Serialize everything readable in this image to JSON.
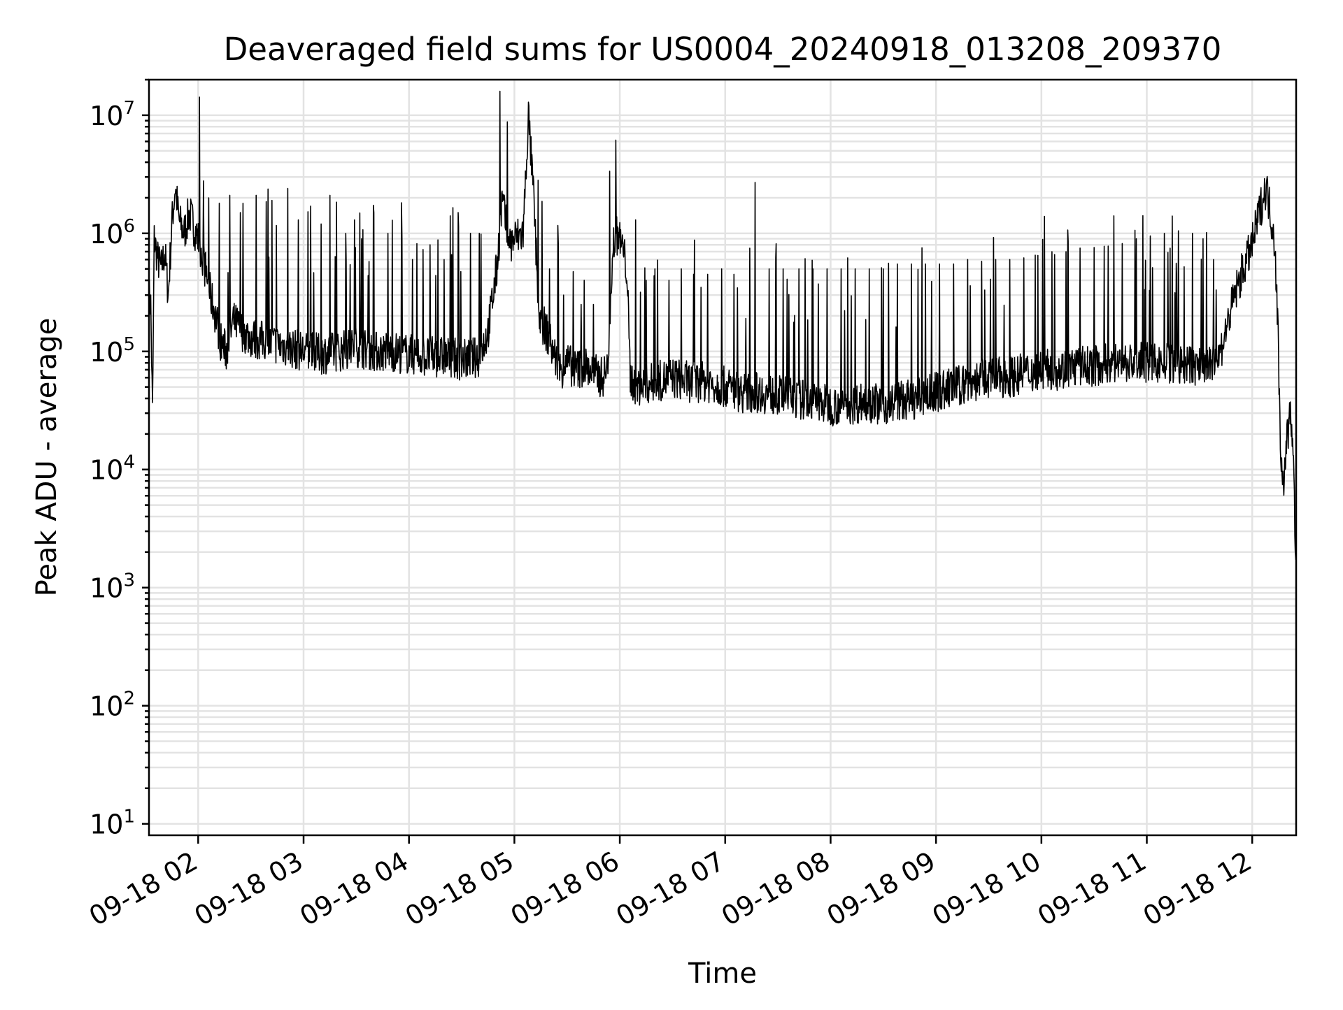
{
  "chart_data": {
    "type": "line",
    "title": "Deaveraged field sums for US0004_20240918_013208_209370",
    "xlabel": "Time",
    "ylabel": "Peak ADU - average",
    "yscale": "log",
    "ylim": [
      8,
      20000000
    ],
    "xlim": [
      "2024-09-18 01:32",
      "2024-09-18 12:25"
    ],
    "grid": true,
    "line_color": "#000000",
    "grid_color": "#e3e3e3",
    "x_ticks": [
      {
        "value": "2024-09-18 02:00",
        "label": "09-18 02"
      },
      {
        "value": "2024-09-18 03:00",
        "label": "09-18 03"
      },
      {
        "value": "2024-09-18 04:00",
        "label": "09-18 04"
      },
      {
        "value": "2024-09-18 05:00",
        "label": "09-18 05"
      },
      {
        "value": "2024-09-18 06:00",
        "label": "09-18 06"
      },
      {
        "value": "2024-09-18 07:00",
        "label": "09-18 07"
      },
      {
        "value": "2024-09-18 08:00",
        "label": "09-18 08"
      },
      {
        "value": "2024-09-18 09:00",
        "label": "09-18 09"
      },
      {
        "value": "2024-09-18 10:00",
        "label": "09-18 10"
      },
      {
        "value": "2024-09-18 11:00",
        "label": "09-18 11"
      },
      {
        "value": "2024-09-18 12:00",
        "label": "09-18 12"
      }
    ],
    "y_ticks": [
      {
        "value": 10,
        "base": "10",
        "exp": "1"
      },
      {
        "value": 100,
        "base": "10",
        "exp": "2"
      },
      {
        "value": 1000,
        "base": "10",
        "exp": "3"
      },
      {
        "value": 10000,
        "base": "10",
        "exp": "4"
      },
      {
        "value": 100000,
        "base": "10",
        "exp": "5"
      },
      {
        "value": 1000000,
        "base": "10",
        "exp": "6"
      },
      {
        "value": 10000000,
        "base": "10",
        "exp": "7"
      }
    ],
    "series": [
      {
        "points": [
          [
            "2024-09-18 01:32",
            300000
          ],
          [
            "2024-09-18 01:33",
            250000
          ],
          [
            "2024-09-18 01:34",
            30000
          ],
          [
            "2024-09-18 01:35",
            900000
          ],
          [
            "2024-09-18 01:37",
            600000
          ],
          [
            "2024-09-18 01:39",
            500000
          ],
          [
            "2024-09-18 01:41",
            700000
          ],
          [
            "2024-09-18 01:43",
            300000
          ],
          [
            "2024-09-18 01:45",
            1200000
          ],
          [
            "2024-09-18 01:47",
            2500000
          ],
          [
            "2024-09-18 01:49",
            1300000
          ],
          [
            "2024-09-18 01:52",
            1000000
          ],
          [
            "2024-09-18 01:55",
            1500000
          ],
          [
            "2024-09-18 01:58",
            1100000
          ],
          [
            "2024-09-18 02:01",
            800000
          ],
          [
            "2024-09-18 02:04",
            500000
          ],
          [
            "2024-09-18 02:07",
            300000
          ],
          [
            "2024-09-18 02:10",
            200000
          ],
          [
            "2024-09-18 02:13",
            120000
          ],
          [
            "2024-09-18 02:16",
            100000
          ],
          [
            "2024-09-18 02:20",
            180000
          ],
          [
            "2024-09-18 02:25",
            150000
          ],
          [
            "2024-09-18 02:30",
            130000
          ],
          [
            "2024-09-18 02:40",
            120000
          ],
          [
            "2024-09-18 02:50",
            110000
          ],
          [
            "2024-09-18 03:00",
            100000
          ],
          [
            "2024-09-18 03:10",
            95000
          ],
          [
            "2024-09-18 03:20",
            100000
          ],
          [
            "2024-09-18 03:30",
            110000
          ],
          [
            "2024-09-18 03:40",
            100000
          ],
          [
            "2024-09-18 03:50",
            100000
          ],
          [
            "2024-09-18 04:00",
            95000
          ],
          [
            "2024-09-18 04:10",
            90000
          ],
          [
            "2024-09-18 04:20",
            90000
          ],
          [
            "2024-09-18 04:30",
            85000
          ],
          [
            "2024-09-18 04:40",
            90000
          ],
          [
            "2024-09-18 04:45",
            150000
          ],
          [
            "2024-09-18 04:50",
            500000
          ],
          [
            "2024-09-18 04:53",
            1900000
          ],
          [
            "2024-09-18 04:56",
            1000000
          ],
          [
            "2024-09-18 04:58",
            800000
          ],
          [
            "2024-09-18 05:00",
            900000
          ],
          [
            "2024-09-18 05:05",
            1000000
          ],
          [
            "2024-09-18 05:08",
            10000000
          ],
          [
            "2024-09-18 05:11",
            2000000
          ],
          [
            "2024-09-18 05:14",
            200000
          ],
          [
            "2024-09-18 05:18",
            150000
          ],
          [
            "2024-09-18 05:22",
            100000
          ],
          [
            "2024-09-18 05:26",
            70000
          ],
          [
            "2024-09-18 05:30",
            80000
          ],
          [
            "2024-09-18 05:35",
            70000
          ],
          [
            "2024-09-18 05:40",
            75000
          ],
          [
            "2024-09-18 05:45",
            65000
          ],
          [
            "2024-09-18 05:50",
            60000
          ],
          [
            "2024-09-18 05:53",
            70000
          ],
          [
            "2024-09-18 05:56",
            800000
          ],
          [
            "2024-09-18 05:59",
            1000000
          ],
          [
            "2024-09-18 06:02",
            700000
          ],
          [
            "2024-09-18 06:04",
            500000
          ],
          [
            "2024-09-18 06:06",
            60000
          ],
          [
            "2024-09-18 06:10",
            50000
          ],
          [
            "2024-09-18 06:20",
            55000
          ],
          [
            "2024-09-18 06:30",
            60000
          ],
          [
            "2024-09-18 06:40",
            55000
          ],
          [
            "2024-09-18 06:50",
            55000
          ],
          [
            "2024-09-18 07:00",
            50000
          ],
          [
            "2024-09-18 07:10",
            45000
          ],
          [
            "2024-09-18 07:20",
            45000
          ],
          [
            "2024-09-18 07:30",
            42000
          ],
          [
            "2024-09-18 07:40",
            40000
          ],
          [
            "2024-09-18 07:50",
            38000
          ],
          [
            "2024-09-18 08:00",
            35000
          ],
          [
            "2024-09-18 08:10",
            35000
          ],
          [
            "2024-09-18 08:20",
            38000
          ],
          [
            "2024-09-18 08:30",
            35000
          ],
          [
            "2024-09-18 08:40",
            38000
          ],
          [
            "2024-09-18 08:50",
            40000
          ],
          [
            "2024-09-18 09:00",
            45000
          ],
          [
            "2024-09-18 09:10",
            50000
          ],
          [
            "2024-09-18 09:20",
            55000
          ],
          [
            "2024-09-18 09:30",
            60000
          ],
          [
            "2024-09-18 09:40",
            60000
          ],
          [
            "2024-09-18 09:50",
            65000
          ],
          [
            "2024-09-18 10:00",
            70000
          ],
          [
            "2024-09-18 10:10",
            70000
          ],
          [
            "2024-09-18 10:20",
            75000
          ],
          [
            "2024-09-18 10:30",
            75000
          ],
          [
            "2024-09-18 10:40",
            80000
          ],
          [
            "2024-09-18 10:50",
            80000
          ],
          [
            "2024-09-18 11:00",
            80000
          ],
          [
            "2024-09-18 11:10",
            80000
          ],
          [
            "2024-09-18 11:20",
            75000
          ],
          [
            "2024-09-18 11:30",
            75000
          ],
          [
            "2024-09-18 11:40",
            80000
          ],
          [
            "2024-09-18 11:45",
            150000
          ],
          [
            "2024-09-18 11:50",
            300000
          ],
          [
            "2024-09-18 11:55",
            500000
          ],
          [
            "2024-09-18 12:00",
            800000
          ],
          [
            "2024-09-18 12:04",
            1500000
          ],
          [
            "2024-09-18 12:08",
            2500000
          ],
          [
            "2024-09-18 12:11",
            1300000
          ],
          [
            "2024-09-18 12:13",
            800000
          ],
          [
            "2024-09-18 12:15",
            100000
          ],
          [
            "2024-09-18 12:16",
            15000
          ],
          [
            "2024-09-18 12:17",
            12000
          ],
          [
            "2024-09-18 12:18",
            5500
          ],
          [
            "2024-09-18 12:19",
            15000
          ],
          [
            "2024-09-18 12:21",
            25000
          ],
          [
            "2024-09-18 12:22",
            28000
          ],
          [
            "2024-09-18 12:23",
            20000
          ],
          [
            "2024-09-18 12:24",
            5000
          ],
          [
            "2024-09-18 12:25",
            1500
          ]
        ],
        "spikes": [
          [
            "2024-09-18 02:06",
            2000000
          ],
          [
            "2024-09-18 02:12",
            1800000
          ],
          [
            "2024-09-18 02:18",
            2100000
          ],
          [
            "2024-09-18 02:24",
            1500000
          ],
          [
            "2024-09-18 02:33",
            2100000
          ],
          [
            "2024-09-18 02:42",
            1900000
          ],
          [
            "2024-09-18 02:51",
            2400000
          ],
          [
            "2024-09-18 02:57",
            1300000
          ],
          [
            "2024-09-18 03:04",
            1700000
          ],
          [
            "2024-09-18 03:10",
            1200000
          ],
          [
            "2024-09-18 03:15",
            2100000
          ],
          [
            "2024-09-18 03:24",
            1000000
          ],
          [
            "2024-09-18 03:29",
            1300000
          ],
          [
            "2024-09-18 03:33",
            900000
          ],
          [
            "2024-09-18 03:40",
            1500000
          ],
          [
            "2024-09-18 03:48",
            1000000
          ],
          [
            "2024-09-18 03:56",
            900000
          ],
          [
            "2024-09-18 04:02",
            600000
          ],
          [
            "2024-09-18 04:12",
            800000
          ],
          [
            "2024-09-18 04:20",
            600000
          ],
          [
            "2024-09-18 04:28",
            1500000
          ],
          [
            "2024-09-18 04:35",
            1000000
          ],
          [
            "2024-09-18 04:40",
            1000000
          ],
          [
            "2024-09-18 05:20",
            500000
          ],
          [
            "2024-09-18 05:28",
            300000
          ],
          [
            "2024-09-18 05:38",
            250000
          ],
          [
            "2024-09-18 05:45",
            250000
          ],
          [
            "2024-09-18 06:09",
            1300000
          ],
          [
            "2024-09-18 06:15",
            400000
          ],
          [
            "2024-09-18 06:20",
            500000
          ],
          [
            "2024-09-18 06:28",
            400000
          ],
          [
            "2024-09-18 06:35",
            500000
          ],
          [
            "2024-09-18 06:42",
            450000
          ],
          [
            "2024-09-18 06:50",
            450000
          ],
          [
            "2024-09-18 06:58",
            500000
          ],
          [
            "2024-09-18 07:05",
            450000
          ],
          [
            "2024-09-18 07:17",
            2700000
          ],
          [
            "2024-09-18 07:25",
            500000
          ],
          [
            "2024-09-18 07:33",
            500000
          ],
          [
            "2024-09-18 07:42",
            500000
          ],
          [
            "2024-09-18 07:50",
            500000
          ],
          [
            "2024-09-18 07:58",
            500000
          ],
          [
            "2024-09-18 08:06",
            500000
          ],
          [
            "2024-09-18 08:14",
            500000
          ],
          [
            "2024-09-18 08:22",
            500000
          ],
          [
            "2024-09-18 08:30",
            500000
          ],
          [
            "2024-09-18 08:38",
            550000
          ],
          [
            "2024-09-18 08:46",
            550000
          ],
          [
            "2024-09-18 08:54",
            550000
          ],
          [
            "2024-09-18 09:02",
            550000
          ],
          [
            "2024-09-18 09:10",
            550000
          ],
          [
            "2024-09-18 09:18",
            600000
          ],
          [
            "2024-09-18 09:26",
            580000
          ],
          [
            "2024-09-18 09:34",
            600000
          ],
          [
            "2024-09-18 09:42",
            600000
          ],
          [
            "2024-09-18 09:50",
            620000
          ],
          [
            "2024-09-18 09:58",
            650000
          ],
          [
            "2024-09-18 10:06",
            700000
          ],
          [
            "2024-09-18 10:14",
            700000
          ],
          [
            "2024-09-18 10:22",
            750000
          ],
          [
            "2024-09-18 10:30",
            760000
          ],
          [
            "2024-09-18 10:38",
            780000
          ],
          [
            "2024-09-18 10:46",
            820000
          ],
          [
            "2024-09-18 10:54",
            900000
          ],
          [
            "2024-09-18 11:02",
            950000
          ],
          [
            "2024-09-18 11:10",
            1000000
          ],
          [
            "2024-09-18 11:18",
            1050000
          ],
          [
            "2024-09-18 11:26",
            1000000
          ],
          [
            "2024-09-18 11:32",
            900000
          ],
          [
            "2024-09-18 11:38",
            600000
          ]
        ]
      }
    ]
  }
}
